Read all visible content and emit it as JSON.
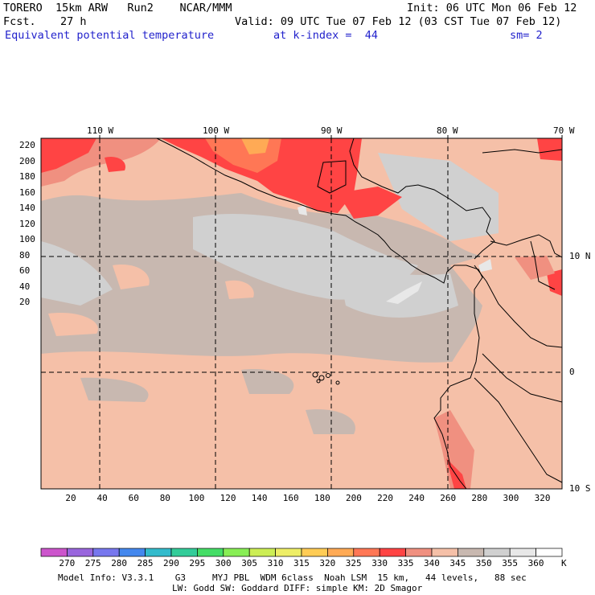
{
  "header": {
    "model_line": "TORERO  15km ARW   Run2    NCAR/MMM",
    "init": "Init: 06 UTC Mon 06 Feb 12",
    "fcst_label": "Fcst.",
    "fcst_value": "27 h",
    "valid": "Valid: 09 UTC Tue 07 Feb 12 (03 CST Tue 07 Feb 12)",
    "field": "Equivalent potential temperature",
    "level": "at k-index =  44",
    "smoothing": "sm= 2"
  },
  "axes": {
    "lon_labels": [
      "110 W",
      "100 W",
      "90 W",
      "80 W",
      "70 W"
    ],
    "lat_labels": [
      "10 N",
      "0",
      "10 S"
    ],
    "y_grid_labels": [
      "220",
      "200",
      "180",
      "160",
      "140",
      "120",
      "100",
      "80",
      "60",
      "40",
      "20"
    ],
    "x_grid_labels": [
      "20",
      "40",
      "60",
      "80",
      "100",
      "120",
      "140",
      "160",
      "180",
      "200",
      "220",
      "240",
      "260",
      "280",
      "300",
      "320"
    ]
  },
  "colorbar": {
    "levels": [
      "270",
      "275",
      "280",
      "285",
      "290",
      "295",
      "300",
      "305",
      "310",
      "315",
      "320",
      "325",
      "330",
      "335",
      "340",
      "345",
      "350",
      "355",
      "360"
    ],
    "unit": "K",
    "colors": [
      "#cc55cc",
      "#9966dd",
      "#7777ee",
      "#4488ee",
      "#33bbcc",
      "#33cc99",
      "#44dd66",
      "#88ee55",
      "#ccee55",
      "#eeee66",
      "#ffcc55",
      "#ffaa55",
      "#ff7755",
      "#ff4444",
      "#f09080",
      "#f5c0a8",
      "#c8b8b0",
      "#d0d0d0",
      "#e8e8e8",
      "#ffffff"
    ]
  },
  "footer": {
    "line1": "Model Info: V3.3.1    G3     MYJ PBL  WDM 6class  Noah LSM  15 km,   44 levels,   88 sec",
    "line2": "LW: Godd SW: Goddard DIFF: simple KM: 2D Smagor"
  }
}
